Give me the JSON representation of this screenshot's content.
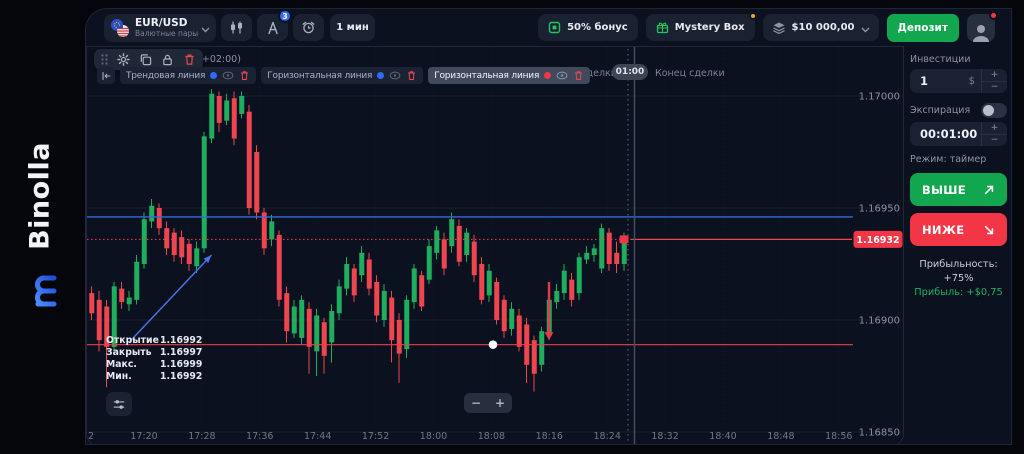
{
  "brand": {
    "name": "Binolla"
  },
  "topbar": {
    "asset": {
      "title": "EUR/USD",
      "subtitle": "Валютные пары"
    },
    "drawing_tools_badge": "3",
    "timeframe": "1 мин",
    "bonus": "50% бонус",
    "mystery_box": "Mystery Box",
    "balance": "$10 000,00",
    "deposit": "Депозит"
  },
  "chart_toolbar": {
    "clock_partial": "TC+02:00)",
    "chips": [
      {
        "label": "Трендовая линия",
        "color": "#2f6bff"
      },
      {
        "label": "Горизонтальная линия",
        "color": "#2f6bff"
      },
      {
        "label": "Горизонтальная линия",
        "color": "#f23645",
        "selected": true
      }
    ]
  },
  "trade_window": {
    "start": "Начало сделки",
    "countdown": "01:00",
    "end": "Конец сделки"
  },
  "ohlc": [
    {
      "label": "Открытие",
      "value": "1.16992"
    },
    {
      "label": "Закрыть",
      "value": "1.16997"
    },
    {
      "label": "Макс.",
      "value": "1.16999"
    },
    {
      "label": "Мин.",
      "value": "1.16992"
    }
  ],
  "zoom_controls": {
    "minus": "−",
    "plus": "+"
  },
  "panel": {
    "investment_label": "Инвестиции",
    "investment_value": "1",
    "investment_currency": "$",
    "stepper_plus": "+",
    "stepper_minus": "−",
    "expiration_label": "Экспирация",
    "expiration_value": "00:01:00",
    "mode": "Режим: таймер",
    "higher": "ВЫШЕ",
    "lower": "НИЖЕ",
    "profitability": "Прибыльность: +75%",
    "profit": "Прибыль: +$0,75"
  },
  "colors": {
    "up": "#1fae5e",
    "down": "#ef4550",
    "accent_blue": "#2e6be4",
    "trend_blue": "#4574e5",
    "accent_red": "#f23645",
    "drawn_red": "#e8404b"
  },
  "chart_data": {
    "type": "candlestick",
    "symbol": "EUR/USD",
    "interval": "1 мин",
    "price_tag": "1.16932",
    "y_ticks": [
      "1.17000",
      "1.16950",
      "1.16900",
      "1.16850"
    ],
    "x_labels": [
      "17:20",
      "17:28",
      "17:36",
      "17:44",
      "17:52",
      "18:00",
      "18:08",
      "18:16",
      "18:24",
      "18:32",
      "18:40",
      "18:48",
      "18:56"
    ],
    "x_label_partial": "2",
    "levels": {
      "blue_line": 1.16946,
      "red_drawn_line": 1.16889
    },
    "trend_line": {
      "from": [
        "17:17",
        1.1689
      ],
      "to": [
        "17:28",
        1.16929
      ]
    },
    "sell_arrow": {
      "time": "18:13",
      "from": 1.16917,
      "to": 1.16891
    },
    "candles": [
      [
        "17:12",
        1.16912,
        1.16915,
        1.169,
        1.16903
      ],
      [
        "17:13",
        1.16909,
        1.16913,
        1.16886,
        1.16891
      ],
      [
        "17:14",
        1.16906,
        1.16909,
        1.1687,
        1.16888
      ],
      [
        "17:15",
        1.16888,
        1.16917,
        1.16885,
        1.16915
      ],
      [
        "17:16",
        1.16914,
        1.16917,
        1.16905,
        1.16908
      ],
      [
        "17:17",
        1.16907,
        1.16913,
        1.16904,
        1.1691
      ],
      [
        "17:18",
        1.16909,
        1.16929,
        1.16907,
        1.16926
      ],
      [
        "17:19",
        1.16925,
        1.16948,
        1.16923,
        1.16945
      ],
      [
        "17:20",
        1.16944,
        1.16954,
        1.16941,
        1.16951
      ],
      [
        "17:21",
        1.1695,
        1.16952,
        1.16938,
        1.16941
      ],
      [
        "17:22",
        1.16941,
        1.16944,
        1.16929,
        1.16932
      ],
      [
        "17:23",
        1.16939,
        1.16941,
        1.16926,
        1.16929
      ],
      [
        "17:24",
        1.16937,
        1.1694,
        1.16925,
        1.16928
      ],
      [
        "17:25",
        1.16934,
        1.16936,
        1.16922,
        1.16925
      ],
      [
        "17:26",
        1.16924,
        1.16935,
        1.16921,
        1.16932
      ],
      [
        "17:27",
        1.16932,
        1.16984,
        1.1693,
        1.16982
      ],
      [
        "17:28",
        1.16981,
        1.17003,
        1.16979,
        1.17001
      ],
      [
        "17:29",
        1.17,
        1.17002,
        1.16984,
        1.16988
      ],
      [
        "17:30",
        1.16989,
        1.17001,
        1.16987,
        1.16998
      ],
      [
        "17:31",
        1.16999,
        1.17002,
        1.16978,
        1.16981
      ],
      [
        "17:32",
        1.16992,
        1.17002,
        1.1699,
        1.17
      ],
      [
        "17:33",
        1.16993,
        1.16996,
        1.16947,
        1.1695
      ],
      [
        "17:34",
        1.16975,
        1.16978,
        1.16945,
        1.16948
      ],
      [
        "17:35",
        1.16948,
        1.1695,
        1.16929,
        1.16932
      ],
      [
        "17:36",
        1.16936,
        1.16947,
        1.16933,
        1.16944
      ],
      [
        "17:37",
        1.16938,
        1.1694,
        1.16906,
        1.16909
      ],
      [
        "17:38",
        1.16912,
        1.16915,
        1.1689,
        1.16895
      ],
      [
        "17:39",
        1.16894,
        1.16909,
        1.16892,
        1.16906
      ],
      [
        "17:40",
        1.16892,
        1.16911,
        1.16889,
        1.16909
      ],
      [
        "17:41",
        1.16905,
        1.16908,
        1.16876,
        1.16888
      ],
      [
        "17:42",
        1.16886,
        1.16905,
        1.16875,
        1.16902
      ],
      [
        "17:43",
        1.16899,
        1.16901,
        1.16876,
        1.16884
      ],
      [
        "17:44",
        1.1689,
        1.16907,
        1.16881,
        1.16904
      ],
      [
        "17:45",
        1.16903,
        1.16918,
        1.169,
        1.16915
      ],
      [
        "17:46",
        1.16914,
        1.16928,
        1.16911,
        1.16925
      ],
      [
        "17:47",
        1.16923,
        1.16925,
        1.16908,
        1.16911
      ],
      [
        "17:48",
        1.1692,
        1.16933,
        1.16917,
        1.1693
      ],
      [
        "17:49",
        1.16927,
        1.1693,
        1.16911,
        1.16914
      ],
      [
        "17:50",
        1.16917,
        1.1692,
        1.16899,
        1.16902
      ],
      [
        "17:51",
        1.169,
        1.16916,
        1.16897,
        1.16913
      ],
      [
        "17:52",
        1.1691,
        1.16913,
        1.16881,
        1.16891
      ],
      [
        "17:53",
        1.169,
        1.16903,
        1.16872,
        1.16885
      ],
      [
        "17:54",
        1.16887,
        1.16911,
        1.16883,
        1.16909
      ],
      [
        "17:55",
        1.16908,
        1.16925,
        1.16905,
        1.16923
      ],
      [
        "17:56",
        1.1692,
        1.16922,
        1.16904,
        1.16906
      ],
      [
        "17:57",
        1.16918,
        1.16936,
        1.16916,
        1.16933
      ],
      [
        "17:58",
        1.1693,
        1.16942,
        1.16927,
        1.1694
      ],
      [
        "17:59",
        1.16936,
        1.16939,
        1.1692,
        1.16923
      ],
      [
        "18:00",
        1.16933,
        1.16948,
        1.1693,
        1.16945
      ],
      [
        "18:01",
        1.16942,
        1.16945,
        1.16924,
        1.16926
      ],
      [
        "18:02",
        1.16929,
        1.16941,
        1.16926,
        1.16939
      ],
      [
        "18:03",
        1.16935,
        1.16938,
        1.16917,
        1.1692
      ],
      [
        "18:04",
        1.16925,
        1.16928,
        1.16907,
        1.16909
      ],
      [
        "18:05",
        1.16911,
        1.16925,
        1.16908,
        1.16922
      ],
      [
        "18:06",
        1.16917,
        1.16919,
        1.16898,
        1.169
      ],
      [
        "18:07",
        1.16909,
        1.16911,
        1.16892,
        1.16895
      ],
      [
        "18:08",
        1.16896,
        1.16908,
        1.16893,
        1.16905
      ],
      [
        "18:09",
        1.16902,
        1.16905,
        1.16886,
        1.16888
      ],
      [
        "18:10",
        1.16898,
        1.16901,
        1.16872,
        1.1688
      ],
      [
        "18:11",
        1.16891,
        1.16893,
        1.16868,
        1.16876
      ],
      [
        "18:12",
        1.1688,
        1.16897,
        1.16877,
        1.16895
      ],
      [
        "18:13",
        1.16893,
        1.16911,
        1.16891,
        1.16909
      ],
      [
        "18:14",
        1.16908,
        1.16916,
        1.16905,
        1.16913
      ],
      [
        "18:15",
        1.16912,
        1.16925,
        1.16909,
        1.16922
      ],
      [
        "18:16",
        1.16918,
        1.16921,
        1.16906,
        1.16909
      ],
      [
        "18:17",
        1.16912,
        1.1693,
        1.16909,
        1.16928
      ],
      [
        "18:18",
        1.16927,
        1.16933,
        1.16925,
        1.1693
      ],
      [
        "18:19",
        1.16929,
        1.16934,
        1.16926,
        1.16932
      ],
      [
        "18:20",
        1.16923,
        1.16943,
        1.16921,
        1.16941
      ],
      [
        "18:21",
        1.16939,
        1.16941,
        1.16922,
        1.16925
      ],
      [
        "18:22",
        1.1693,
        1.16935,
        1.16921,
        1.16925
      ],
      [
        "18:23",
        1.16925,
        1.16939,
        1.16922,
        1.16936
      ]
    ]
  }
}
